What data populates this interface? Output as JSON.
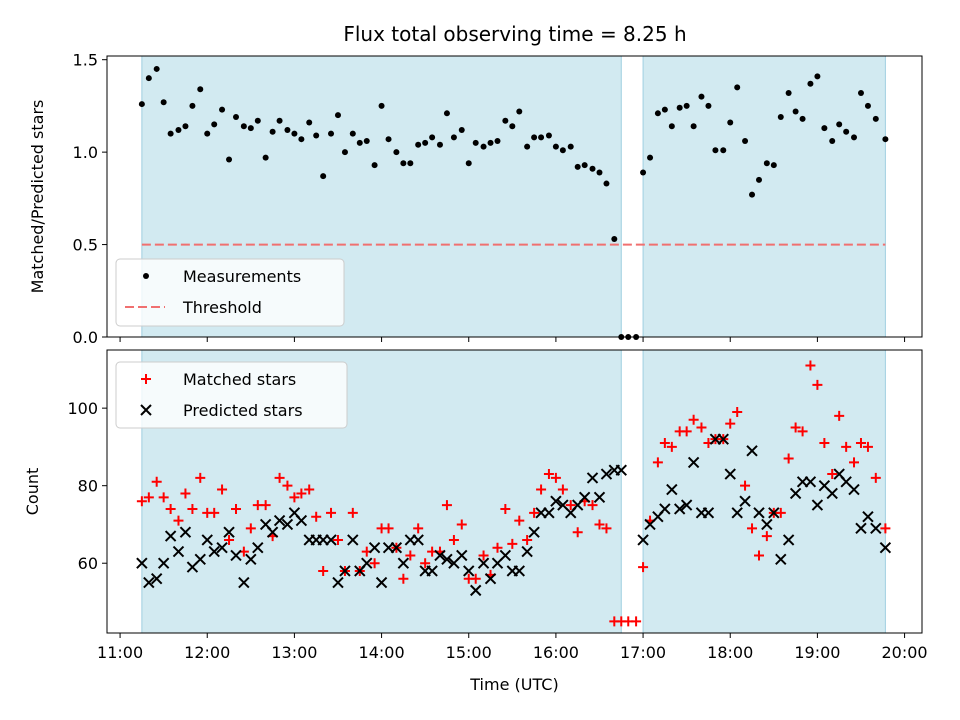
{
  "title": "Flux total observing time = 8.25 h",
  "chart_data": [
    {
      "type": "scatter",
      "ylabel": "Matched/Predicted stars",
      "xlabel": "",
      "xlim": [
        10.85,
        20.2
      ],
      "ylim": [
        0,
        1.52
      ],
      "yticks": [
        "0.0",
        "0.5",
        "1.0",
        "1.5"
      ],
      "shaded_intervals": [
        [
          11.25,
          16.75
        ],
        [
          17.0,
          19.78
        ]
      ],
      "shade_color": "#add8e6",
      "threshold": {
        "value": 0.5,
        "label": "Threshold",
        "color": "#f07070"
      },
      "legend": {
        "position": "lower-left",
        "entries": [
          "Measurements",
          "Threshold"
        ]
      },
      "series": [
        {
          "name": "Measurements",
          "marker": "dot",
          "color": "#000000",
          "x": [
            11.25,
            11.33,
            11.42,
            11.5,
            11.58,
            11.67,
            11.75,
            11.83,
            11.92,
            12.0,
            12.08,
            12.17,
            12.25,
            12.33,
            12.42,
            12.5,
            12.58,
            12.67,
            12.75,
            12.83,
            12.92,
            13.0,
            13.08,
            13.17,
            13.25,
            13.33,
            13.42,
            13.5,
            13.58,
            13.67,
            13.75,
            13.83,
            13.92,
            14.0,
            14.08,
            14.17,
            14.25,
            14.33,
            14.42,
            14.5,
            14.58,
            14.67,
            14.75,
            14.83,
            14.92,
            15.0,
            15.08,
            15.17,
            15.25,
            15.33,
            15.42,
            15.5,
            15.58,
            15.67,
            15.75,
            15.83,
            15.92,
            16.0,
            16.08,
            16.17,
            16.25,
            16.33,
            16.42,
            16.5,
            16.58,
            16.67,
            16.75,
            16.83,
            16.92,
            17.0,
            17.08,
            17.17,
            17.25,
            17.33,
            17.42,
            17.5,
            17.58,
            17.67,
            17.75,
            17.83,
            17.92,
            18.0,
            18.08,
            18.17,
            18.25,
            18.33,
            18.42,
            18.5,
            18.58,
            18.67,
            18.75,
            18.83,
            18.92,
            19.0,
            19.08,
            19.17,
            19.25,
            19.33,
            19.42,
            19.5,
            19.58,
            19.67,
            19.78
          ],
          "y": [
            1.26,
            1.4,
            1.45,
            1.27,
            1.1,
            1.12,
            1.14,
            1.25,
            1.34,
            1.1,
            1.15,
            1.23,
            0.96,
            1.19,
            1.14,
            1.13,
            1.17,
            0.97,
            1.11,
            1.17,
            1.12,
            1.1,
            1.07,
            1.16,
            1.09,
            0.87,
            1.1,
            1.2,
            1.0,
            1.1,
            1.05,
            1.06,
            0.93,
            1.25,
            1.07,
            1.0,
            0.94,
            0.94,
            1.04,
            1.05,
            1.08,
            1.04,
            1.21,
            1.08,
            1.12,
            0.94,
            1.05,
            1.03,
            1.05,
            1.06,
            1.17,
            1.14,
            1.22,
            1.03,
            1.08,
            1.08,
            1.09,
            1.03,
            1.01,
            1.03,
            0.92,
            0.93,
            0.91,
            0.89,
            0.83,
            0.53,
            0.0,
            0.0,
            0.0,
            0.89,
            0.97,
            1.21,
            1.23,
            1.14,
            1.24,
            1.25,
            1.14,
            1.3,
            1.25,
            1.01,
            1.01,
            1.16,
            1.35,
            1.06,
            0.77,
            0.85,
            0.94,
            0.93,
            1.19,
            1.32,
            1.22,
            1.18,
            1.37,
            1.41,
            1.13,
            1.06,
            1.15,
            1.11,
            1.08,
            1.32,
            1.25,
            1.18,
            1.07
          ]
        }
      ]
    },
    {
      "type": "scatter",
      "ylabel": "Count",
      "xlabel": "Time (UTC)",
      "xlim": [
        10.85,
        20.2
      ],
      "ylim": [
        42,
        115
      ],
      "yticks": [
        "60",
        "80",
        "100"
      ],
      "xticks": [
        "11:00",
        "12:00",
        "13:00",
        "14:00",
        "15:00",
        "16:00",
        "17:00",
        "18:00",
        "19:00",
        "20:00"
      ],
      "shaded_intervals": [
        [
          11.25,
          16.75
        ],
        [
          17.0,
          19.78
        ]
      ],
      "shade_color": "#add8e6",
      "legend": {
        "position": "top-left",
        "entries": [
          "Matched stars",
          "Predicted stars"
        ]
      },
      "series": [
        {
          "name": "Matched stars",
          "marker": "plus",
          "color": "#ff0000",
          "x": [
            11.25,
            11.33,
            11.42,
            11.5,
            11.58,
            11.67,
            11.75,
            11.83,
            11.92,
            12.0,
            12.08,
            12.17,
            12.25,
            12.33,
            12.42,
            12.5,
            12.58,
            12.67,
            12.75,
            12.83,
            12.92,
            13.0,
            13.08,
            13.17,
            13.25,
            13.33,
            13.42,
            13.5,
            13.58,
            13.67,
            13.75,
            13.83,
            13.92,
            14.0,
            14.08,
            14.17,
            14.25,
            14.33,
            14.42,
            14.5,
            14.58,
            14.67,
            14.75,
            14.83,
            14.92,
            15.0,
            15.08,
            15.17,
            15.25,
            15.33,
            15.42,
            15.5,
            15.58,
            15.67,
            15.75,
            15.83,
            15.92,
            16.0,
            16.08,
            16.17,
            16.25,
            16.33,
            16.42,
            16.5,
            16.58,
            16.67,
            16.75,
            16.83,
            16.92,
            17.0,
            17.08,
            17.17,
            17.25,
            17.33,
            17.42,
            17.5,
            17.58,
            17.67,
            17.75,
            17.83,
            17.92,
            18.0,
            18.08,
            18.17,
            18.25,
            18.33,
            18.42,
            18.5,
            18.58,
            18.67,
            18.75,
            18.83,
            18.92,
            19.0,
            19.08,
            19.17,
            19.25,
            19.33,
            19.42,
            19.5,
            19.58,
            19.67,
            19.78
          ],
          "y": [
            76,
            77,
            81,
            77,
            74,
            71,
            78,
            74,
            82,
            73,
            73,
            79,
            66,
            74,
            63,
            69,
            75,
            75,
            67,
            82,
            80,
            77,
            78,
            79,
            72,
            58,
            73,
            66,
            58,
            73,
            58,
            63,
            60,
            69,
            69,
            64,
            56,
            62,
            69,
            60,
            63,
            63,
            75,
            66,
            70,
            56,
            56,
            62,
            57,
            64,
            74,
            65,
            71,
            66,
            73,
            79,
            83,
            82,
            79,
            75,
            68,
            76,
            75,
            70,
            69,
            45,
            45,
            45,
            45,
            59,
            71,
            86,
            91,
            90,
            94,
            94,
            97,
            95,
            91,
            92,
            92,
            96,
            99,
            80,
            69,
            62,
            67,
            73,
            73,
            87,
            95,
            94,
            111,
            106,
            91,
            83,
            98,
            90,
            86,
            91,
            90,
            82,
            69
          ]
        },
        {
          "name": "Predicted stars",
          "marker": "x",
          "color": "#000000",
          "x": [
            11.25,
            11.33,
            11.42,
            11.5,
            11.58,
            11.67,
            11.75,
            11.83,
            11.92,
            12.0,
            12.08,
            12.17,
            12.25,
            12.33,
            12.42,
            12.5,
            12.58,
            12.67,
            12.75,
            12.83,
            12.92,
            13.0,
            13.08,
            13.17,
            13.25,
            13.33,
            13.42,
            13.5,
            13.58,
            13.67,
            13.75,
            13.83,
            13.92,
            14.0,
            14.08,
            14.17,
            14.25,
            14.33,
            14.42,
            14.5,
            14.58,
            14.67,
            14.75,
            14.83,
            14.92,
            15.0,
            15.08,
            15.17,
            15.25,
            15.33,
            15.42,
            15.5,
            15.58,
            15.67,
            15.75,
            15.83,
            15.92,
            16.0,
            16.08,
            16.17,
            16.25,
            16.33,
            16.42,
            16.5,
            16.58,
            16.67,
            16.75,
            17.0,
            17.08,
            17.17,
            17.25,
            17.33,
            17.42,
            17.5,
            17.58,
            17.67,
            17.75,
            17.83,
            17.92,
            18.0,
            18.08,
            18.17,
            18.25,
            18.33,
            18.42,
            18.5,
            18.58,
            18.67,
            18.75,
            18.83,
            18.92,
            19.0,
            19.08,
            19.17,
            19.25,
            19.33,
            19.42,
            19.5,
            19.58,
            19.67,
            19.78
          ],
          "y": [
            60,
            55,
            56,
            60,
            67,
            63,
            68,
            59,
            61,
            66,
            63,
            64,
            68,
            62,
            55,
            61,
            64,
            70,
            68,
            71,
            70,
            73,
            71,
            66,
            66,
            66,
            66,
            55,
            58,
            66,
            58,
            60,
            64,
            55,
            64,
            64,
            60,
            66,
            66,
            58,
            58,
            62,
            61,
            60,
            62,
            58,
            53,
            60,
            56,
            60,
            62,
            58,
            58,
            63,
            68,
            73,
            73,
            76,
            75,
            73,
            75,
            77,
            82,
            77,
            83,
            84,
            84,
            66,
            70,
            72,
            74,
            79,
            74,
            75,
            86,
            73,
            73,
            92,
            92,
            83,
            73,
            76,
            89,
            73,
            70,
            73,
            61,
            66,
            78,
            81,
            81,
            75,
            80,
            78,
            83,
            81,
            79,
            69,
            72,
            69,
            64
          ]
        }
      ]
    }
  ]
}
